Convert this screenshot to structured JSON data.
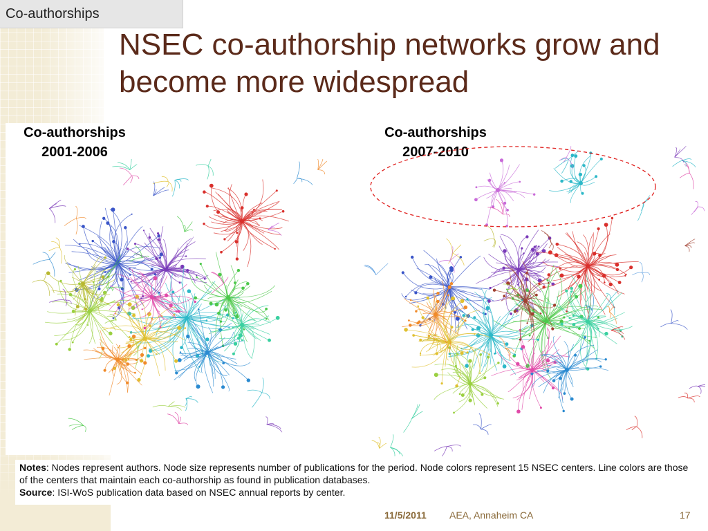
{
  "slide": {
    "corner_label": "Co-authorships",
    "title": "NSEC co-authorship networks grow and become more widespread"
  },
  "panels": [
    {
      "caption_line1": "Co-authorships",
      "caption_line2": "2001-2006"
    },
    {
      "caption_line1": "Co-authorships",
      "caption_line2": "2007-2010"
    }
  ],
  "notes": {
    "notes_label": "Notes",
    "notes_text": ": Nodes represent authors. Node size represents number of publications for the period. Node colors represent 15 NSEC centers. Line colors are those of the centers that maintain each co-authorship as found in publication databases.",
    "source_label": "Source",
    "source_text": ": ISI-WoS publication data based on NSEC annual reports by center."
  },
  "footer": {
    "date": "11/5/2011",
    "event": "AEA, Annaheim CA",
    "page": "17"
  },
  "colors": {
    "title": "#5b2a1a",
    "highlight_ellipse": "#e0201e",
    "network_palette": [
      "#d9302c",
      "#3a55c8",
      "#7a3ab8",
      "#2cb8c8",
      "#4cc84a",
      "#e0c030",
      "#e04aa8",
      "#9ad040",
      "#f08a2a",
      "#2a8ad0",
      "#b8b830",
      "#c86ad8",
      "#3ad0a0",
      "#a04030",
      "#60a0e0"
    ]
  }
}
